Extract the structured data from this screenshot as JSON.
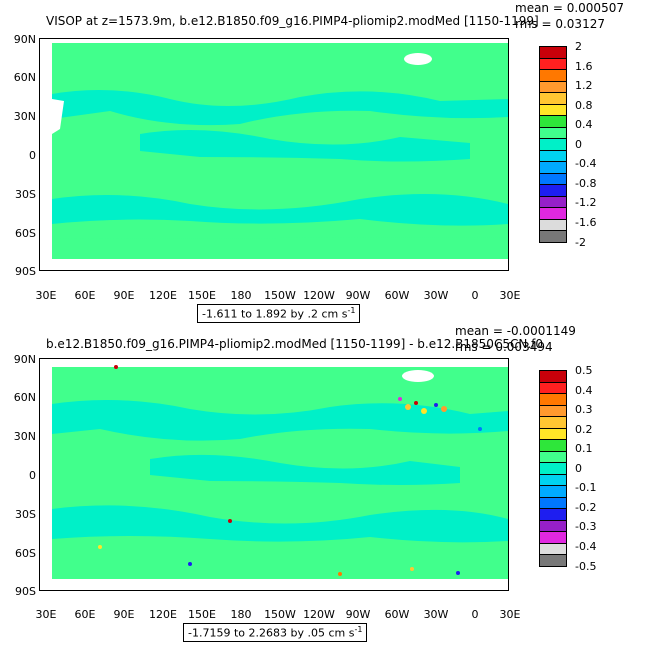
{
  "top": {
    "title": "VISOP at z=1573.9m, b.e12.B1850.f09_g16.PIMP4-pliomip2.modMed [1150-1199]",
    "mean": "mean = 0.000507",
    "rms": "rms = 0.03127",
    "range_label": "-1.611 to 1.892 by .2 cm s",
    "range_sup": "-1",
    "colorbar": {
      "labels": [
        "2",
        "1.6",
        "1.2",
        "0.8",
        "0.4",
        "0",
        "-0.4",
        "-0.8",
        "-1.2",
        "-1.6",
        "-2"
      ],
      "colors": [
        "#c8000a",
        "#ff2020",
        "#ff7800",
        "#ff9a2e",
        "#ffc632",
        "#ffe628",
        "#2ee63a",
        "#41ff8c",
        "#00f0c8",
        "#00d2f0",
        "#00aaff",
        "#0078ff",
        "#1e1ef0",
        "#9620c8",
        "#e028e0",
        "#dcdcdc",
        "#787878"
      ]
    }
  },
  "bottom": {
    "title": "b.e12.B1850.f09_g16.PIMP4-pliomip2.modMed [1150-1199] - b.e12.B1850C5CN.f0",
    "mean": "mean = -0.0001149",
    "rms": "rms = 0.003494",
    "range_label": "-1.7159 to 2.2683 by .05 cm s",
    "range_sup": "-1",
    "colorbar": {
      "labels": [
        "0.5",
        "0.4",
        "0.3",
        "0.2",
        "0.1",
        "0",
        "-0.1",
        "-0.2",
        "-0.3",
        "-0.4",
        "-0.5"
      ],
      "colors": [
        "#c8000a",
        "#ff2020",
        "#ff7800",
        "#ff9a2e",
        "#ffc632",
        "#ffe628",
        "#2ee63a",
        "#41ff8c",
        "#00f0c8",
        "#00d2f0",
        "#00aaff",
        "#0078ff",
        "#1e1ef0",
        "#9620c8",
        "#e028e0",
        "#dcdcdc",
        "#787878"
      ]
    }
  },
  "axes": {
    "lat_labels": [
      "90N",
      "60N",
      "30N",
      "0",
      "30S",
      "60S",
      "90S"
    ],
    "lon_labels": [
      "30E",
      "60E",
      "90E",
      "120E",
      "150E",
      "180",
      "150W",
      "120W",
      "90W",
      "60W",
      "30W",
      "0",
      "30E"
    ]
  },
  "colors": {
    "ocean_main": "#41ff8c",
    "ocean_alt": "#00f0c8",
    "land": "#ffffff"
  }
}
